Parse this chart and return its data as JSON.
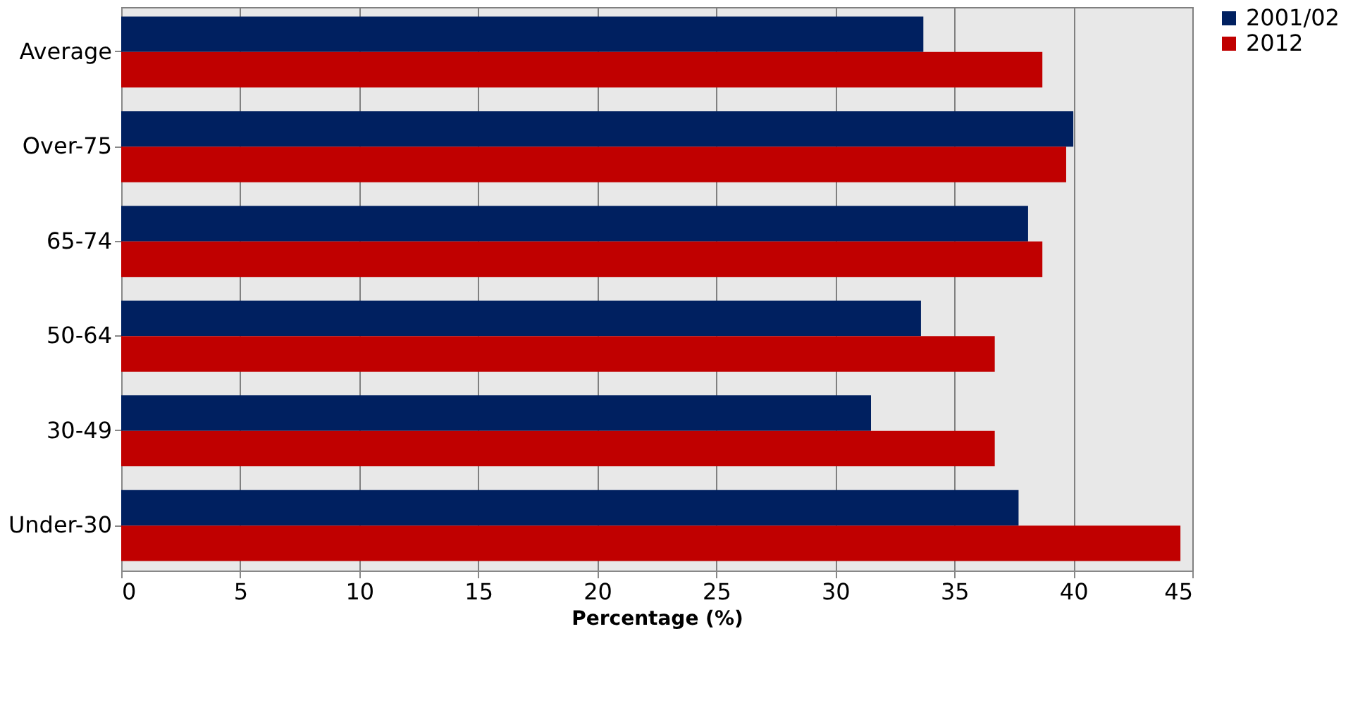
{
  "chart_data": {
    "type": "bar",
    "orientation": "horizontal",
    "xlabel": "Percentage (%)",
    "categories": [
      "Average",
      "Over-75",
      "65-74",
      "50-64",
      "30-49",
      "Under-30"
    ],
    "series": [
      {
        "name": "2001/02",
        "color": "#002060",
        "values": [
          33.7,
          40.0,
          38.1,
          33.6,
          31.5,
          37.7
        ]
      },
      {
        "name": "2012",
        "color": "#c00000",
        "values": [
          38.7,
          39.7,
          38.7,
          36.7,
          36.7,
          44.5
        ]
      }
    ],
    "xlim": [
      0,
      45
    ],
    "xticks": [
      0,
      5,
      10,
      15,
      20,
      25,
      30,
      35,
      40,
      45
    ],
    "grid": "x",
    "legend": "right"
  }
}
